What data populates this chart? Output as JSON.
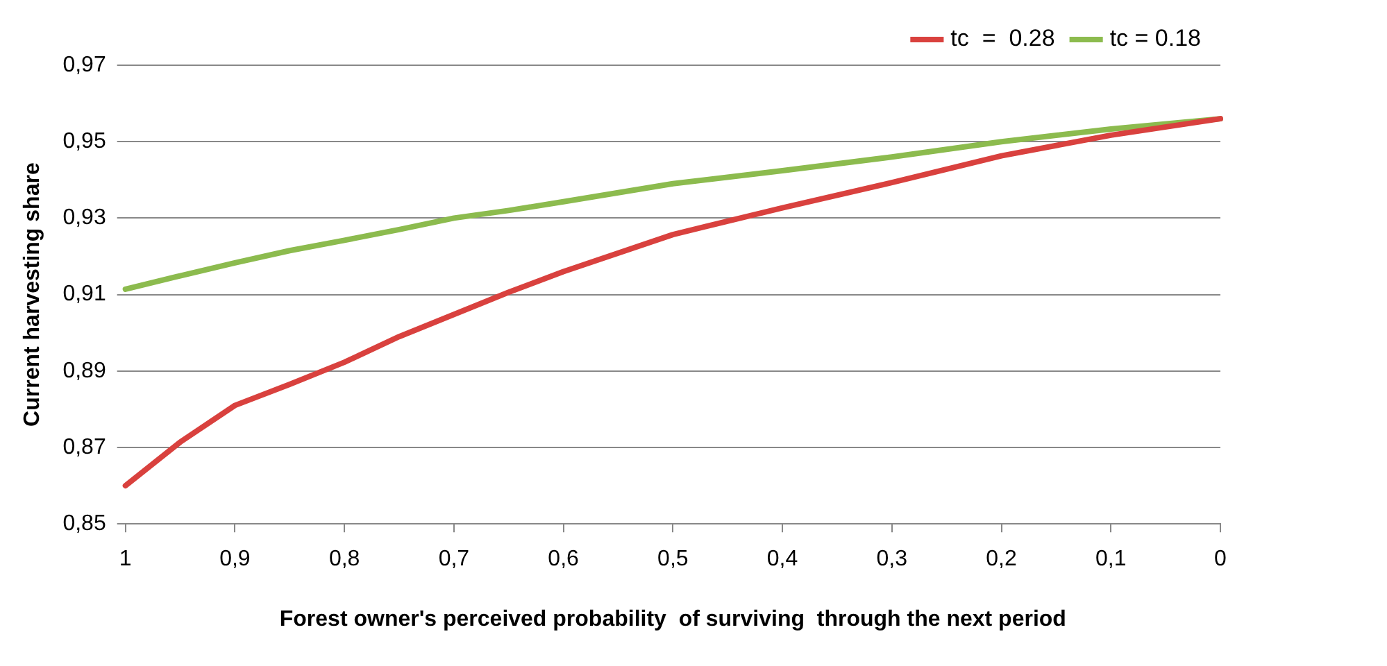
{
  "chart_data": {
    "type": "line",
    "xlabel": "Forest owner's perceived probability  of surviving  through the next period",
    "ylabel": "Current harvesting share",
    "x": [
      1,
      0.95,
      0.9,
      0.85,
      0.8,
      0.75,
      0.7,
      0.65,
      0.6,
      0.5,
      0.4,
      0.3,
      0.2,
      0.1,
      0
    ],
    "series": [
      {
        "name": "tc  =  0.28",
        "color": "#d9413e",
        "values": [
          0.86,
          0.8714,
          0.881,
          0.8865,
          0.8923,
          0.899,
          0.9048,
          0.9106,
          0.916,
          0.9257,
          0.9327,
          0.9393,
          0.9463,
          0.9517,
          0.956
        ]
      },
      {
        "name": "tc = 0.18",
        "color": "#8cbb4e",
        "values": [
          0.9114,
          0.9149,
          0.9183,
          0.9215,
          0.9242,
          0.927,
          0.93,
          0.932,
          0.9343,
          0.939,
          0.9424,
          0.946,
          0.95,
          0.9533,
          0.956
        ]
      }
    ],
    "xlim": [
      1,
      0
    ],
    "xticks": [
      1,
      {
        "value": 0.9,
        "label": "0,9"
      },
      {
        "value": 0.8,
        "label": "0,8"
      },
      {
        "value": 0.7,
        "label": "0,7"
      },
      {
        "value": 0.6,
        "label": "0,6"
      },
      {
        "value": 0.5,
        "label": "0,5"
      },
      {
        "value": 0.4,
        "label": "0,4"
      },
      {
        "value": 0.3,
        "label": "0,3"
      },
      {
        "value": 0.2,
        "label": "0,2"
      },
      {
        "value": 0.1,
        "label": "0,1"
      },
      0
    ],
    "ylim": [
      0.85,
      0.97
    ],
    "yticks": [
      {
        "value": 0.85,
        "label": "0,85"
      },
      {
        "value": 0.87,
        "label": "0,87"
      },
      {
        "value": 0.89,
        "label": "0,89"
      },
      {
        "value": 0.91,
        "label": "0,91"
      },
      {
        "value": 0.93,
        "label": "0,93"
      },
      {
        "value": 0.95,
        "label": "0,95"
      },
      {
        "value": 0.97,
        "label": "0,97"
      }
    ],
    "grid": "y",
    "legend": "top right",
    "marker": "none",
    "line_style": "solid"
  }
}
